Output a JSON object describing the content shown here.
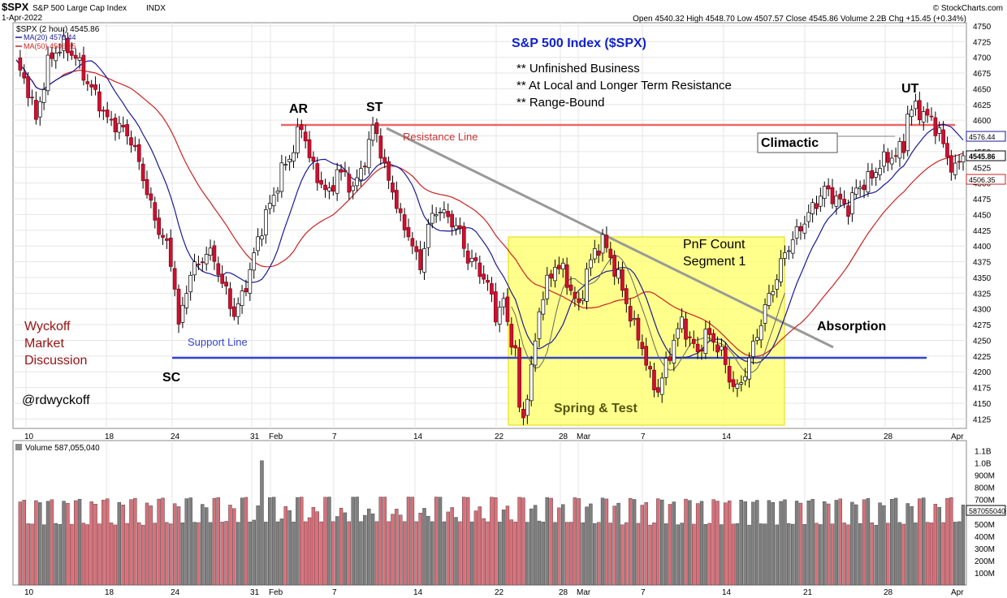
{
  "header": {
    "symbol": "$SPX",
    "name": "S&P 500 Large Cap Index",
    "exchange": "INDX",
    "date": "1-Apr-2022",
    "watermark": "© StockCharts.com",
    "ohlc": "Open 4540.32  High 4548.70  Low 4507.57  Close 4545.86  Volume 2.2B  Chg +15.45 (+0.34%)"
  },
  "legend": {
    "price": "$SPX (2 hour) 4545.86",
    "ma20": "MA(20) 4576.44",
    "ma50": "MA(50) 4506.35",
    "volume": "Volume 587,055,040"
  },
  "annotations": {
    "title": "S&P 500 Index ($SPX)",
    "bullet1": "** Unfinished Business",
    "bullet2": "** At Local and Longer Term Resistance",
    "bullet3": "** Range-Bound",
    "ar": "AR",
    "st": "ST",
    "ut": "UT",
    "sc": "SC",
    "resistance": "Resistance Line",
    "support": "Support Line",
    "climactic": "Climactic",
    "pnf1": "PnF Count",
    "pnf2": "Segment 1",
    "absorption": "Absorption",
    "spring": "Spring & Test",
    "wyckoff1": "Wyckoff",
    "wyckoff2": "Market",
    "wyckoff3": "Discussion",
    "handle": "@rdwyckoff"
  },
  "colors": {
    "up": "#ffffff",
    "down": "#cc1133",
    "ma20": "#1a1a99",
    "ma50": "#cc2222",
    "resistance": "#ee6666",
    "support": "#3344cc",
    "highlight": "#ffff66",
    "vol_up": "#808080",
    "vol_down": "#d9707a",
    "title": "#1122cc",
    "wyckoff": "#991111"
  },
  "chart_data": {
    "type": "candlestick",
    "x_labels": [
      "10",
      "18",
      "24",
      "31",
      "Feb",
      "7",
      "14",
      "22",
      "28",
      "Mar",
      "7",
      "14",
      "21",
      "28",
      "Apr"
    ],
    "price_ticks": [
      "4750",
      "4725",
      "4700",
      "4675",
      "4650",
      "4625",
      "4600",
      "4575",
      "4550",
      "4525",
      "4500",
      "4475",
      "4450",
      "4425",
      "4400",
      "4375",
      "4350",
      "4325",
      "4300",
      "4275",
      "4250",
      "4225",
      "4200",
      "4175",
      "4150",
      "4125"
    ],
    "volume_ticks": [
      "1.1B",
      "1.0B",
      "900M",
      "800M",
      "700M",
      "600M",
      "500M",
      "400M",
      "300M",
      "200M",
      "100M"
    ],
    "ylim": [
      4110,
      4755
    ],
    "resistance_level": 4595,
    "support_level": 4222,
    "last_price_labels": {
      "ma20": "4576.44",
      "price": "4545.86",
      "ma50": "4506.35",
      "volume": "587055040"
    },
    "anchors": [
      [
        0,
        4690
      ],
      [
        3,
        4650
      ],
      [
        5,
        4600
      ],
      [
        8,
        4690
      ],
      [
        10,
        4710
      ],
      [
        12,
        4720
      ],
      [
        15,
        4700
      ],
      [
        18,
        4660
      ],
      [
        20,
        4640
      ],
      [
        23,
        4600
      ],
      [
        26,
        4590
      ],
      [
        29,
        4570
      ],
      [
        32,
        4510
      ],
      [
        35,
        4440
      ],
      [
        38,
        4400
      ],
      [
        40,
        4340
      ],
      [
        41,
        4270
      ],
      [
        42,
        4300
      ],
      [
        44,
        4360
      ],
      [
        46,
        4370
      ],
      [
        48,
        4390
      ],
      [
        50,
        4380
      ],
      [
        52,
        4340
      ],
      [
        54,
        4310
      ],
      [
        55,
        4290
      ],
      [
        57,
        4320
      ],
      [
        59,
        4360
      ],
      [
        61,
        4410
      ],
      [
        63,
        4450
      ],
      [
        65,
        4480
      ],
      [
        67,
        4520
      ],
      [
        69,
        4540
      ],
      [
        71,
        4575
      ],
      [
        72,
        4590
      ],
      [
        73,
        4570
      ],
      [
        75,
        4520
      ],
      [
        77,
        4500
      ],
      [
        79,
        4480
      ],
      [
        81,
        4520
      ],
      [
        83,
        4510
      ],
      [
        85,
        4490
      ],
      [
        87,
        4520
      ],
      [
        89,
        4560
      ],
      [
        90,
        4590
      ],
      [
        91,
        4580
      ],
      [
        93,
        4520
      ],
      [
        95,
        4490
      ],
      [
        97,
        4440
      ],
      [
        99,
        4420
      ],
      [
        101,
        4380
      ],
      [
        102,
        4370
      ],
      [
        104,
        4430
      ],
      [
        106,
        4460
      ],
      [
        108,
        4450
      ],
      [
        110,
        4440
      ],
      [
        112,
        4420
      ],
      [
        114,
        4380
      ],
      [
        116,
        4370
      ],
      [
        118,
        4350
      ],
      [
        120,
        4320
      ],
      [
        121,
        4290
      ],
      [
        123,
        4310
      ],
      [
        125,
        4250
      ],
      [
        126,
        4230
      ],
      [
        127,
        4140
      ],
      [
        128,
        4130
      ],
      [
        130,
        4200
      ],
      [
        132,
        4300
      ],
      [
        134,
        4340
      ],
      [
        136,
        4370
      ],
      [
        138,
        4360
      ],
      [
        140,
        4330
      ],
      [
        142,
        4300
      ],
      [
        144,
        4360
      ],
      [
        146,
        4390
      ],
      [
        148,
        4410
      ],
      [
        150,
        4380
      ],
      [
        152,
        4350
      ],
      [
        154,
        4310
      ],
      [
        156,
        4270
      ],
      [
        158,
        4240
      ],
      [
        160,
        4190
      ],
      [
        162,
        4170
      ],
      [
        164,
        4210
      ],
      [
        166,
        4250
      ],
      [
        168,
        4280
      ],
      [
        170,
        4250
      ],
      [
        172,
        4230
      ],
      [
        174,
        4260
      ],
      [
        176,
        4250
      ],
      [
        178,
        4230
      ],
      [
        180,
        4190
      ],
      [
        182,
        4170
      ],
      [
        184,
        4200
      ],
      [
        186,
        4240
      ],
      [
        188,
        4280
      ],
      [
        190,
        4320
      ],
      [
        192,
        4350
      ],
      [
        194,
        4390
      ],
      [
        196,
        4410
      ],
      [
        198,
        4430
      ],
      [
        200,
        4450
      ],
      [
        202,
        4470
      ],
      [
        204,
        4490
      ],
      [
        206,
        4480
      ],
      [
        208,
        4470
      ],
      [
        210,
        4460
      ],
      [
        212,
        4490
      ],
      [
        214,
        4500
      ],
      [
        216,
        4510
      ],
      [
        218,
        4530
      ],
      [
        220,
        4540
      ],
      [
        222,
        4545
      ],
      [
        224,
        4560
      ],
      [
        225,
        4610
      ],
      [
        227,
        4620
      ],
      [
        229,
        4610
      ],
      [
        231,
        4600
      ],
      [
        233,
        4580
      ],
      [
        235,
        4540
      ],
      [
        237,
        4520
      ],
      [
        239,
        4546
      ]
    ]
  }
}
